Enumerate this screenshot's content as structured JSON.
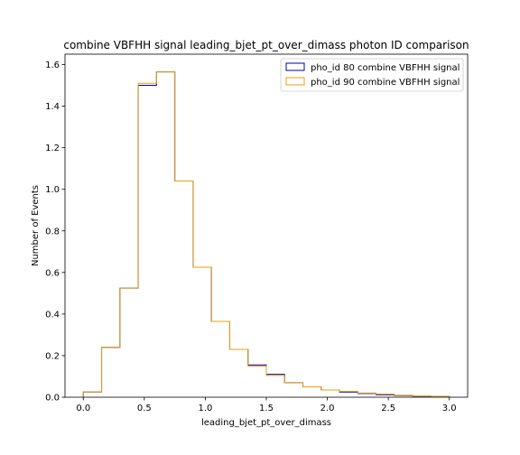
{
  "chart_data": {
    "type": "histogram",
    "title": "combine VBFHH signal leading_bjet_pt_over_dimass photon ID comparison",
    "xlabel": "leading_bjet_pt_over_dimass",
    "ylabel": "Number of Events",
    "xlim": [
      -0.15,
      3.15
    ],
    "ylim": [
      0.0,
      1.65
    ],
    "xticks": [
      "0.0",
      "0.5",
      "1.0",
      "1.5",
      "2.0",
      "2.5",
      "3.0"
    ],
    "yticks": [
      "0.0",
      "0.2",
      "0.4",
      "0.6",
      "0.8",
      "1.0",
      "1.2",
      "1.4",
      "1.6"
    ],
    "legend_position": "top-right",
    "bin_edges": [
      0.0,
      0.15,
      0.3,
      0.45,
      0.6,
      0.75,
      0.9,
      1.05,
      1.2,
      1.35,
      1.5,
      1.65,
      1.8,
      1.95,
      2.1,
      2.25,
      2.4,
      2.55,
      2.7,
      2.85,
      3.0
    ],
    "series": [
      {
        "name": "pho_id 80 combine VBFHH signal",
        "color": "#0000aa",
        "values": [
          0.025,
          0.24,
          0.525,
          1.5,
          1.565,
          1.04,
          0.625,
          0.365,
          0.23,
          0.155,
          0.11,
          0.07,
          0.05,
          0.035,
          0.025,
          0.018,
          0.012,
          0.008,
          0.005,
          0.003
        ]
      },
      {
        "name": "pho_id 90 combine VBFHH signal",
        "color": "#e6a010",
        "values": [
          0.025,
          0.24,
          0.525,
          1.51,
          1.565,
          1.04,
          0.625,
          0.365,
          0.23,
          0.15,
          0.105,
          0.07,
          0.05,
          0.035,
          0.028,
          0.02,
          0.015,
          0.01,
          0.006,
          0.003
        ]
      }
    ]
  }
}
